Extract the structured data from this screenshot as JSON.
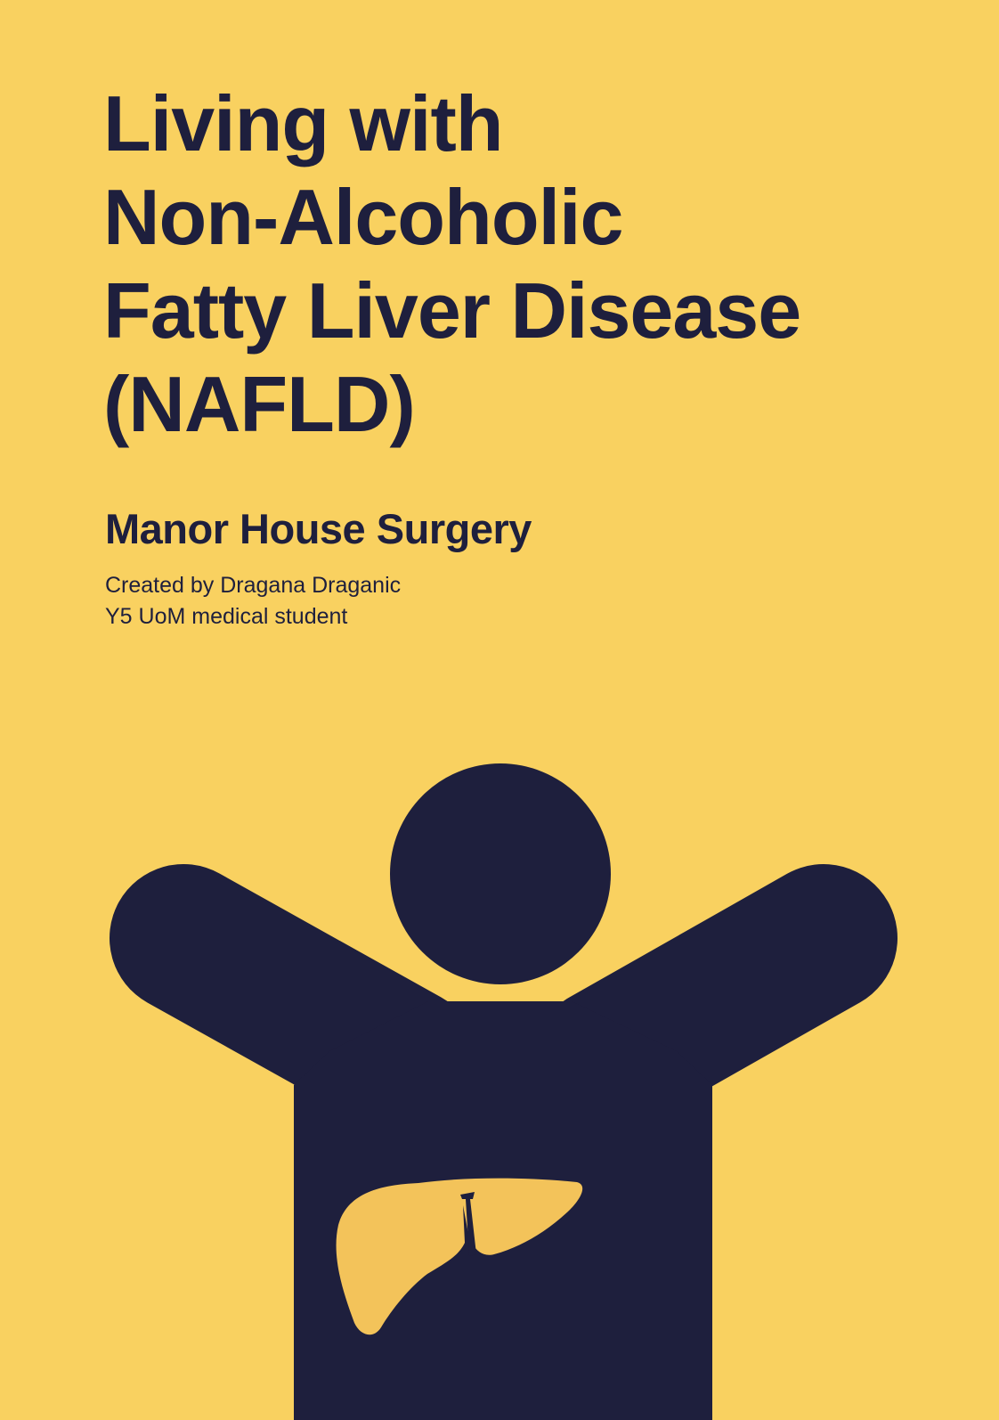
{
  "colors": {
    "background": "#F9D160",
    "text": "#1E1F3D",
    "figure": "#1E1F3D",
    "liver": "#F3C35A"
  },
  "cover": {
    "title_lines": [
      "Living with",
      "Non-Alcoholic",
      "Fatty Liver Disease",
      "(NAFLD)"
    ],
    "practice_name": "Manor House Surgery",
    "author_line": "Created by Dragana Draganic",
    "author_role": "Y5 UoM medical student"
  },
  "illustration": {
    "figure_icon": "person-arms-raised-icon",
    "organ_icon": "liver-icon"
  }
}
